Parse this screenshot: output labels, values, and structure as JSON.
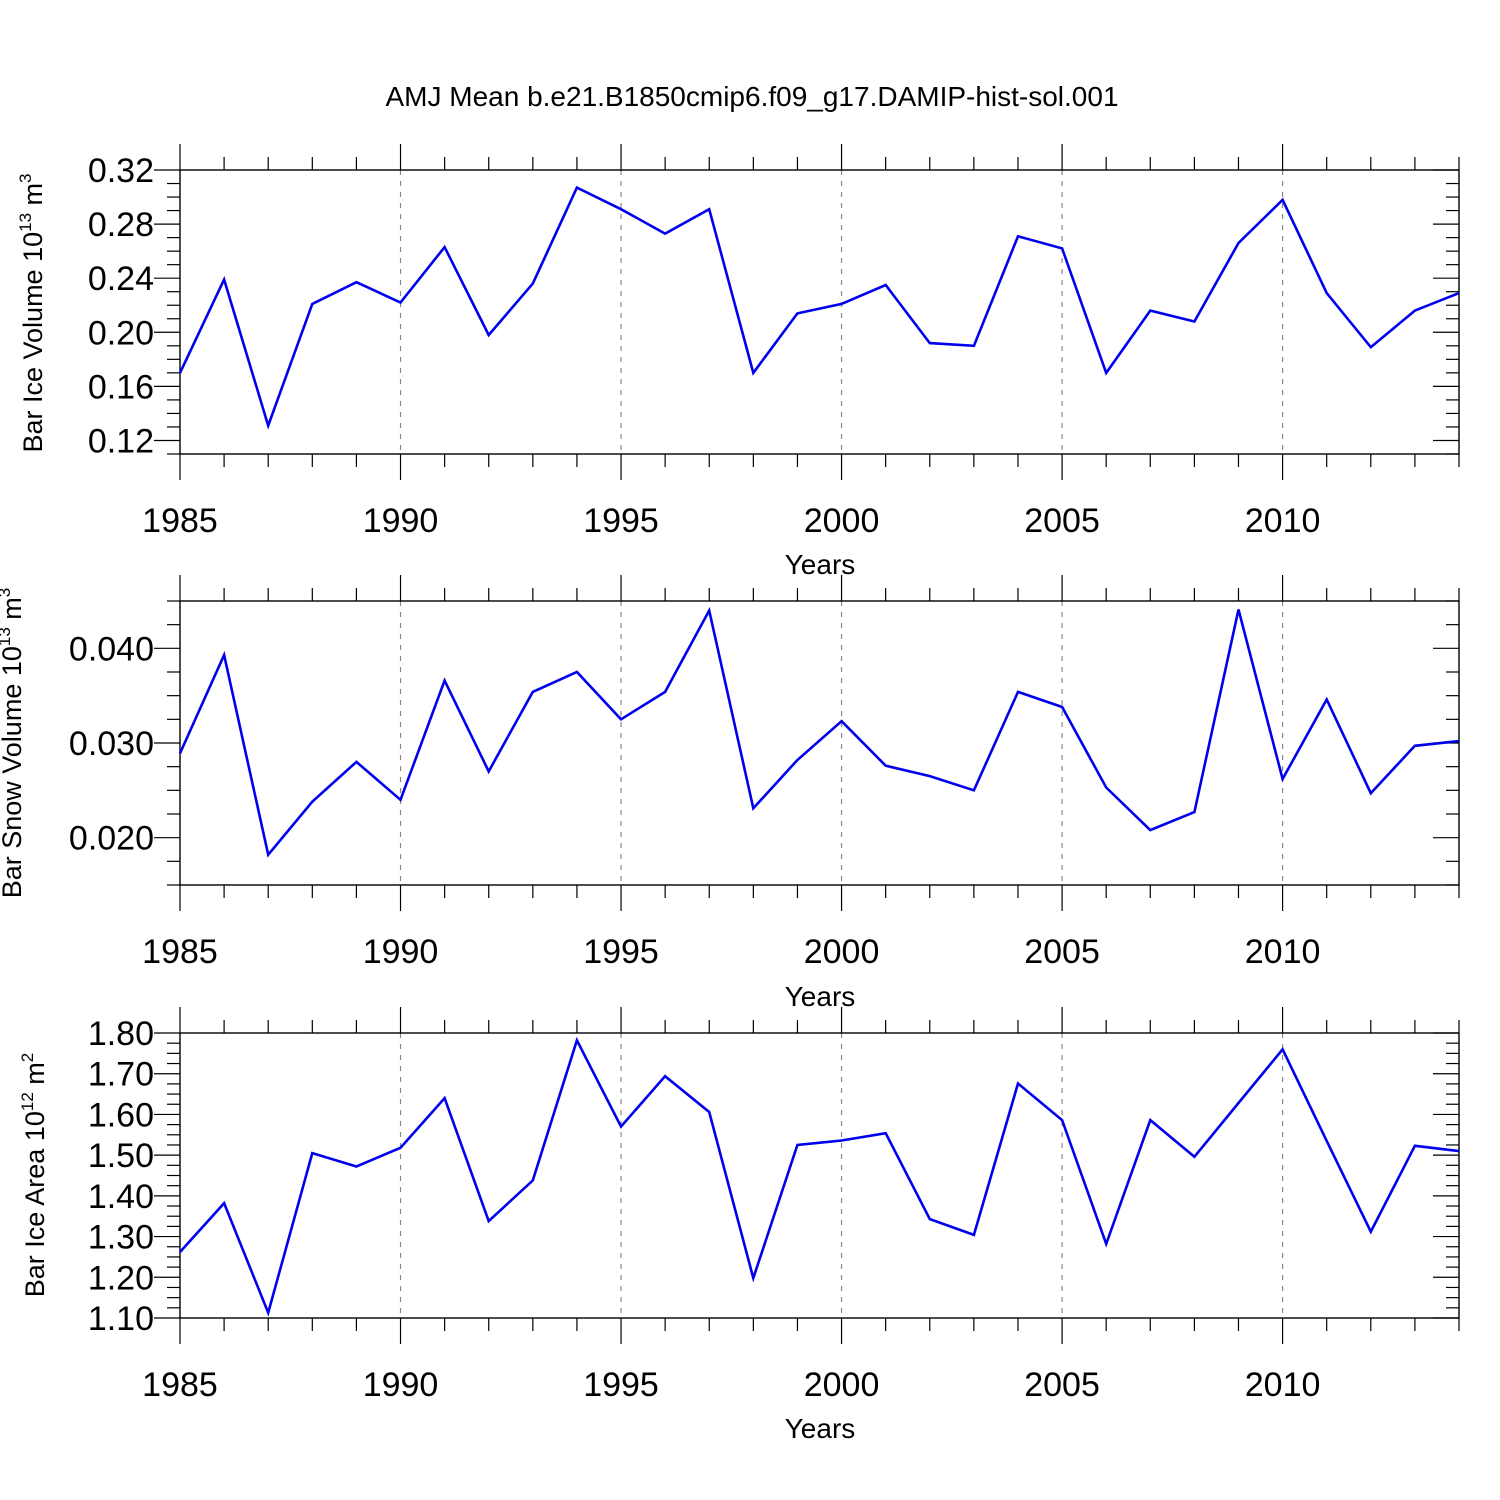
{
  "chart_data": [
    {
      "type": "line",
      "title": "AMJ Mean b.e21.B1850cmip6.f09_g17.DAMIP-hist-sol.001",
      "ylabel": "Bar Ice Volume 10",
      "ylabel_exp": "13",
      "ylabel_unit": "m",
      "ylabel_unit_exp": "3",
      "xlabel": "Years",
      "xlim": [
        1985,
        2014
      ],
      "ylim": [
        0.11,
        0.32
      ],
      "x_ticks": [
        "1985",
        "1990",
        "1995",
        "2000",
        "2005",
        "2010"
      ],
      "y_ticks": [
        "0.12",
        "0.16",
        "0.20",
        "0.24",
        "0.28",
        "0.32"
      ],
      "grid": "vertical dashed at major x ticks",
      "line_color": "#0000ee",
      "series": [
        {
          "name": "Bar Ice Volume",
          "x": [
            1985,
            1986,
            1987,
            1988,
            1989,
            1990,
            1991,
            1992,
            1993,
            1994,
            1995,
            1996,
            1997,
            1998,
            1999,
            2000,
            2001,
            2002,
            2003,
            2004,
            2005,
            2006,
            2007,
            2008,
            2009,
            2010,
            2011,
            2012,
            2013,
            2014
          ],
          "values": [
            0.17,
            0.239,
            0.131,
            0.221,
            0.237,
            0.222,
            0.263,
            0.198,
            0.236,
            0.307,
            0.291,
            0.273,
            0.291,
            0.17,
            0.214,
            0.221,
            0.235,
            0.192,
            0.19,
            0.271,
            0.262,
            0.17,
            0.216,
            0.208,
            0.266,
            0.298,
            0.229,
            0.189,
            0.216,
            0.229
          ]
        }
      ]
    },
    {
      "type": "line",
      "ylabel": "Bar Snow Volume 10",
      "ylabel_exp": "13",
      "ylabel_unit": "m",
      "ylabel_unit_exp": "3",
      "xlabel": "Years",
      "xlim": [
        1985,
        2014
      ],
      "ylim": [
        0.015,
        0.045
      ],
      "x_ticks": [
        "1985",
        "1990",
        "1995",
        "2000",
        "2005",
        "2010"
      ],
      "y_ticks": [
        "0.020",
        "0.030",
        "0.040"
      ],
      "grid": "vertical dashed at major x ticks",
      "line_color": "#0000ee",
      "series": [
        {
          "name": "Bar Snow Volume",
          "x": [
            1985,
            1986,
            1987,
            1988,
            1989,
            1990,
            1991,
            1992,
            1993,
            1994,
            1995,
            1996,
            1997,
            1998,
            1999,
            2000,
            2001,
            2002,
            2003,
            2004,
            2005,
            2006,
            2007,
            2008,
            2009,
            2010,
            2011,
            2012,
            2013,
            2014
          ],
          "values": [
            0.0289,
            0.0393,
            0.0182,
            0.0238,
            0.028,
            0.024,
            0.0366,
            0.027,
            0.0354,
            0.0375,
            0.0325,
            0.0354,
            0.044,
            0.0231,
            0.0282,
            0.0323,
            0.0276,
            0.0265,
            0.025,
            0.0354,
            0.0338,
            0.0253,
            0.0208,
            0.0227,
            0.0441,
            0.0262,
            0.0346,
            0.0247,
            0.0297,
            0.0302
          ]
        }
      ]
    },
    {
      "type": "line",
      "ylabel": "Bar Ice Area 10",
      "ylabel_exp": "12",
      "ylabel_unit": "m",
      "ylabel_unit_exp": "2",
      "xlabel": "Years",
      "xlim": [
        1985,
        2014
      ],
      "ylim": [
        1.1,
        1.8
      ],
      "x_ticks": [
        "1985",
        "1990",
        "1995",
        "2000",
        "2005",
        "2010"
      ],
      "y_ticks": [
        "1.10",
        "1.20",
        "1.30",
        "1.40",
        "1.50",
        "1.60",
        "1.70",
        "1.80"
      ],
      "grid": "vertical dashed at major x ticks",
      "line_color": "#0000ee",
      "series": [
        {
          "name": "Bar Ice Area",
          "x": [
            1985,
            1986,
            1987,
            1988,
            1989,
            1990,
            1991,
            1992,
            1993,
            1994,
            1995,
            1996,
            1997,
            1998,
            1999,
            2000,
            2001,
            2002,
            2003,
            2004,
            2005,
            2006,
            2007,
            2008,
            2009,
            2010,
            2011,
            2012,
            2013,
            2014
          ],
          "values": [
            1.262,
            1.382,
            1.113,
            1.505,
            1.472,
            1.518,
            1.64,
            1.338,
            1.438,
            1.782,
            1.57,
            1.694,
            1.606,
            1.198,
            1.525,
            1.536,
            1.554,
            1.343,
            1.304,
            1.676,
            1.586,
            1.282,
            1.586,
            1.496,
            1.628,
            1.76,
            1.535,
            1.312,
            1.523,
            1.51
          ]
        }
      ]
    }
  ]
}
